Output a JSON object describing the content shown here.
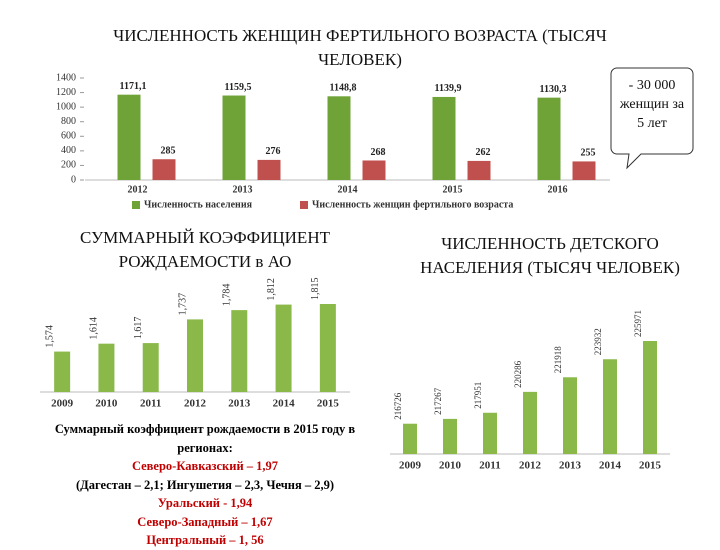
{
  "chart_data": [
    {
      "type": "bar",
      "title": "ЧИСЛЕННОСТЬ ЖЕНЩИН ФЕРТИЛЬНОГО ВОЗРАСТА (ТЫСЯЧ ЧЕЛОВЕК)",
      "categories": [
        "2012",
        "2013",
        "2014",
        "2015",
        "2016"
      ],
      "series": [
        {
          "name": "Численность населения",
          "color": "#6fa338",
          "values": [
            1171.1,
            1159.5,
            1148.8,
            1139.9,
            1130.3
          ],
          "value_labels": [
            "1171,1",
            "1159,5",
            "1148,8",
            "1139,9",
            "1130,3"
          ]
        },
        {
          "name": "Численность женщин фертильного возраста",
          "color": "#c0504d",
          "values": [
            285,
            276,
            268,
            262,
            255
          ]
        }
      ],
      "ylim": [
        0,
        1400
      ],
      "yticks": [
        0,
        200,
        400,
        600,
        800,
        1000,
        1200,
        1400
      ],
      "legend": "bottom",
      "annotation": "- 30 000 женщин за 5 лет"
    },
    {
      "type": "bar",
      "title": "СУММАРНЫЙ КОЭФФИЦИЕНТ РОЖДАЕМОСТИ в АО",
      "categories": [
        "2009",
        "2010",
        "2011",
        "2012",
        "2013",
        "2014",
        "2015"
      ],
      "values": [
        1.574,
        1.614,
        1.617,
        1.737,
        1.784,
        1.812,
        1.815
      ],
      "value_labels": [
        "1,574",
        "1,614",
        "1,617",
        "1,737",
        "1,784",
        "1,812",
        "1,815"
      ],
      "color": "#8ab94a",
      "notes": [
        {
          "text": "Суммарный коэффициент рождаемости в 2015 году в регионах:",
          "color": "#000000"
        },
        {
          "text": "Северо-Кавказский – 1,97",
          "color": "#c00000"
        },
        {
          "text": "(Дагестан – 2,1; Ингушетия – 2,3, Чечня – 2,9)",
          "color": "#000000"
        },
        {
          "text": "Уральский - 1,94",
          "color": "#c00000"
        },
        {
          "text": "Северо-Западный – 1,67",
          "color": "#c00000"
        },
        {
          "text": "Центральный – 1, 56",
          "color": "#c00000"
        }
      ]
    },
    {
      "type": "bar",
      "title": "ЧИСЛЕННОСТЬ ДЕТСКОГО НАСЕЛЕНИЯ (ТЫСЯЧ ЧЕЛОВЕК)",
      "categories": [
        "2009",
        "2010",
        "2011",
        "2012",
        "2013",
        "2014",
        "2015"
      ],
      "values": [
        216726,
        217267,
        217951,
        220286,
        221918,
        223932,
        225971
      ],
      "color": "#8ab94a"
    }
  ]
}
